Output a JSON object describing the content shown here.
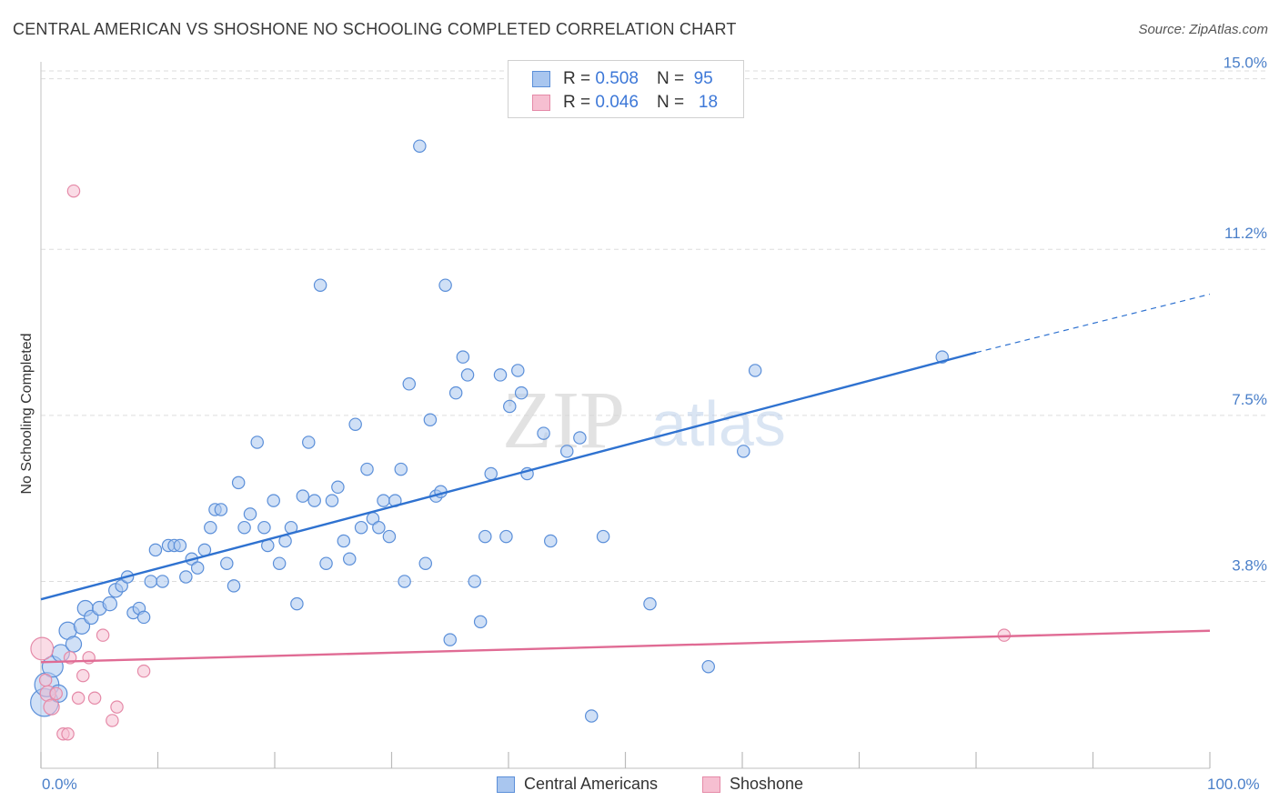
{
  "title": "CENTRAL AMERICAN VS SHOSHONE NO SCHOOLING COMPLETED CORRELATION CHART",
  "source": "Source: ZipAtlas.com",
  "watermark": {
    "zip": "ZIP",
    "atlas": "atlas"
  },
  "legend": {
    "rows": [
      {
        "r_label": "R =",
        "r_value": "0.508",
        "n_label": "N =",
        "n_value": "95"
      },
      {
        "r_label": "R =",
        "r_value": "0.046",
        "n_label": "N =",
        "n_value": "18"
      }
    ]
  },
  "bottom_legend": {
    "series1": "Central Americans",
    "series2": "Shoshone"
  },
  "x_axis": {
    "min_label": "0.0%",
    "max_label": "100.0%"
  },
  "chart_data": {
    "type": "scatter",
    "title": "CENTRAL AMERICAN VS SHOSHONE NO SCHOOLING COMPLETED CORRELATION CHART",
    "xlabel": "",
    "ylabel": "No Schooling Completed",
    "xlim": [
      0,
      100
    ],
    "ylim": [
      0,
      15.5
    ],
    "y_ticks": [
      {
        "value": 3.8,
        "label": "3.8%"
      },
      {
        "value": 7.5,
        "label": "7.5%"
      },
      {
        "value": 11.2,
        "label": "11.2%"
      },
      {
        "value": 15.0,
        "label": "15.0%"
      }
    ],
    "grid": true,
    "legend_position": "top-center",
    "colors": {
      "series1_fill": "#a9c6ef",
      "series1_stroke": "#5b8fd9",
      "series1_line": "#2f72d0",
      "series2_fill": "#f6bfd1",
      "series2_stroke": "#e58aa8",
      "series2_line": "#e06b94",
      "tick_label": "#4a7fc9",
      "grid": "#dddddd"
    },
    "series": [
      {
        "name": "Central Americans",
        "r": 0.508,
        "n": 95,
        "trend": {
          "x0": 0,
          "y0": 3.4,
          "x1": 80,
          "y1": 8.9,
          "dash_to_x": 100,
          "dash_to_y": 10.2
        },
        "points": [
          [
            0.3,
            1.1,
            1.6
          ],
          [
            0.5,
            1.5,
            1.4
          ],
          [
            1.0,
            1.9,
            1.2
          ],
          [
            1.5,
            1.3,
            1.0
          ],
          [
            1.7,
            2.2,
            1.0
          ],
          [
            2.3,
            2.7,
            1.0
          ],
          [
            2.8,
            2.4,
            0.9
          ],
          [
            3.5,
            2.8,
            0.9
          ],
          [
            3.8,
            3.2,
            0.9
          ],
          [
            4.3,
            3.0,
            0.8
          ],
          [
            5.0,
            3.2,
            0.8
          ],
          [
            5.9,
            3.3,
            0.8
          ],
          [
            6.4,
            3.6,
            0.8
          ],
          [
            6.9,
            3.7,
            0.7
          ],
          [
            7.4,
            3.9,
            0.7
          ],
          [
            7.9,
            3.1,
            0.7
          ],
          [
            8.4,
            3.2,
            0.7
          ],
          [
            8.8,
            3.0,
            0.7
          ],
          [
            9.4,
            3.8,
            0.7
          ],
          [
            9.8,
            4.5,
            0.7
          ],
          [
            10.4,
            3.8,
            0.7
          ],
          [
            10.9,
            4.6,
            0.7
          ],
          [
            11.4,
            4.6,
            0.7
          ],
          [
            11.9,
            4.6,
            0.7
          ],
          [
            12.4,
            3.9,
            0.7
          ],
          [
            12.9,
            4.3,
            0.7
          ],
          [
            13.4,
            4.1,
            0.7
          ],
          [
            14.0,
            4.5,
            0.7
          ],
          [
            14.5,
            5.0,
            0.7
          ],
          [
            14.9,
            5.4,
            0.7
          ],
          [
            15.4,
            5.4,
            0.7
          ],
          [
            15.9,
            4.2,
            0.7
          ],
          [
            16.5,
            3.7,
            0.7
          ],
          [
            16.9,
            6.0,
            0.7
          ],
          [
            17.4,
            5.0,
            0.7
          ],
          [
            17.9,
            5.3,
            0.7
          ],
          [
            18.5,
            6.9,
            0.7
          ],
          [
            19.1,
            5.0,
            0.7
          ],
          [
            19.4,
            4.6,
            0.7
          ],
          [
            19.9,
            5.6,
            0.7
          ],
          [
            20.4,
            4.2,
            0.7
          ],
          [
            20.9,
            4.7,
            0.7
          ],
          [
            21.4,
            5.0,
            0.7
          ],
          [
            21.9,
            3.3,
            0.7
          ],
          [
            22.4,
            5.7,
            0.7
          ],
          [
            22.9,
            6.9,
            0.7
          ],
          [
            23.4,
            5.6,
            0.7
          ],
          [
            23.9,
            10.4,
            0.7
          ],
          [
            24.4,
            4.2,
            0.7
          ],
          [
            24.9,
            5.6,
            0.7
          ],
          [
            25.4,
            5.9,
            0.7
          ],
          [
            25.9,
            4.7,
            0.7
          ],
          [
            26.4,
            4.3,
            0.7
          ],
          [
            26.9,
            7.3,
            0.7
          ],
          [
            27.4,
            5.0,
            0.7
          ],
          [
            27.9,
            6.3,
            0.7
          ],
          [
            28.4,
            5.2,
            0.7
          ],
          [
            28.9,
            5.0,
            0.7
          ],
          [
            29.3,
            5.6,
            0.7
          ],
          [
            29.8,
            4.8,
            0.7
          ],
          [
            30.3,
            5.6,
            0.7
          ],
          [
            30.8,
            6.3,
            0.7
          ],
          [
            31.1,
            3.8,
            0.7
          ],
          [
            31.5,
            8.2,
            0.7
          ],
          [
            32.4,
            13.5,
            0.7
          ],
          [
            32.9,
            4.2,
            0.7
          ],
          [
            33.3,
            7.4,
            0.7
          ],
          [
            33.8,
            5.7,
            0.7
          ],
          [
            34.2,
            5.8,
            0.7
          ],
          [
            34.6,
            10.4,
            0.7
          ],
          [
            35.0,
            2.5,
            0.7
          ],
          [
            35.5,
            8.0,
            0.7
          ],
          [
            36.1,
            8.8,
            0.7
          ],
          [
            36.5,
            8.4,
            0.7
          ],
          [
            37.1,
            3.8,
            0.7
          ],
          [
            37.6,
            2.9,
            0.7
          ],
          [
            38.0,
            4.8,
            0.7
          ],
          [
            38.5,
            6.2,
            0.7
          ],
          [
            39.3,
            8.4,
            0.7
          ],
          [
            39.8,
            4.8,
            0.7
          ],
          [
            40.1,
            7.7,
            0.7
          ],
          [
            40.8,
            8.5,
            0.7
          ],
          [
            41.1,
            8.0,
            0.7
          ],
          [
            41.6,
            6.2,
            0.7
          ],
          [
            43.0,
            7.1,
            0.7
          ],
          [
            43.6,
            4.7,
            0.7
          ],
          [
            45.0,
            6.7,
            0.7
          ],
          [
            46.1,
            7.0,
            0.7
          ],
          [
            47.1,
            0.8,
            0.7
          ],
          [
            48.1,
            4.8,
            0.7
          ],
          [
            52.1,
            3.3,
            0.7
          ],
          [
            57.1,
            1.9,
            0.7
          ],
          [
            60.1,
            6.7,
            0.7
          ],
          [
            61.1,
            8.5,
            0.7
          ],
          [
            77.1,
            8.8,
            0.7
          ]
        ]
      },
      {
        "name": "Shoshone",
        "r": 0.046,
        "n": 18,
        "trend": {
          "x0": 0,
          "y0": 2.0,
          "x1": 100,
          "y1": 2.7
        },
        "points": [
          [
            0.1,
            2.3,
            1.3
          ],
          [
            0.6,
            1.3,
            0.9
          ],
          [
            0.9,
            1.0,
            0.9
          ],
          [
            1.3,
            1.3,
            0.7
          ],
          [
            1.9,
            0.4,
            0.7
          ],
          [
            2.3,
            0.4,
            0.7
          ],
          [
            2.5,
            2.1,
            0.7
          ],
          [
            2.8,
            12.5,
            0.7
          ],
          [
            3.2,
            1.2,
            0.7
          ],
          [
            3.6,
            1.7,
            0.7
          ],
          [
            4.1,
            2.1,
            0.7
          ],
          [
            4.6,
            1.2,
            0.7
          ],
          [
            5.3,
            2.6,
            0.7
          ],
          [
            6.1,
            0.7,
            0.7
          ],
          [
            6.5,
            1.0,
            0.7
          ],
          [
            8.8,
            1.8,
            0.7
          ],
          [
            82.4,
            2.6,
            0.7
          ],
          [
            0.4,
            1.6,
            0.7
          ]
        ]
      }
    ]
  }
}
